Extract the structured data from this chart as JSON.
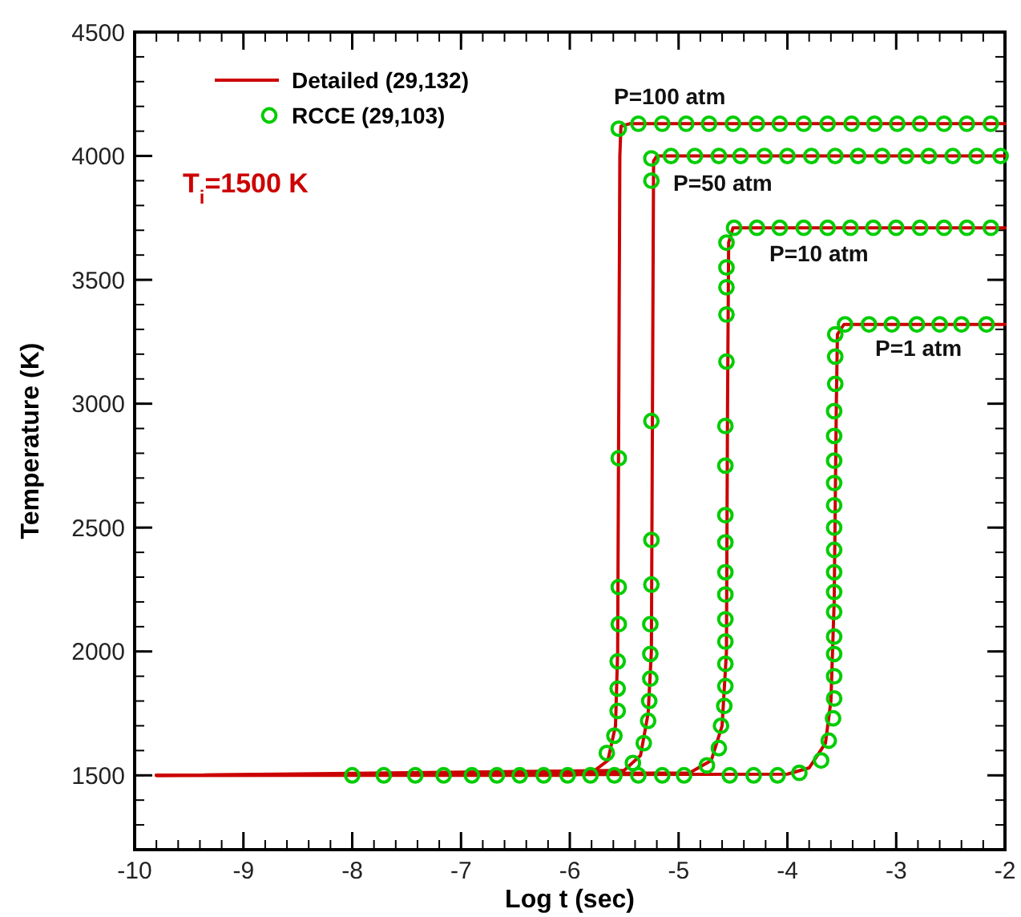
{
  "chart_data": {
    "type": "line",
    "xlabel": "Log t (sec)",
    "ylabel": "Temperature (K)",
    "xlim": [
      -10,
      -2
    ],
    "ylim": [
      1200,
      4500
    ],
    "xticks": [
      -10,
      -9,
      -8,
      -7,
      -6,
      -5,
      -4,
      -3,
      -2
    ],
    "yticks": [
      1500,
      2000,
      2500,
      3000,
      3500,
      4000,
      4500
    ],
    "grid": false,
    "legend": "top left",
    "annotations": [
      "P=100 atm",
      "P=50 atm",
      "P=10 atm",
      "P=1 atm",
      "T$_{i}$=1500 K"
    ],
    "series": [
      {
        "name": "Detailed (29,132)",
        "color": "#cc0000",
        "x": [
          -9.8,
          -6.0,
          -5.8,
          -5.65,
          -5.58,
          -5.56,
          -5.55,
          -5.54,
          -5.53,
          -5.45,
          -2
        ],
        "values": [
          1500,
          1500,
          1510,
          1560,
          1700,
          2000,
          3000,
          4000,
          4120,
          4130,
          4130
        ]
      },
      {
        "color": "#cc0000",
        "x": [
          -9.8,
          -5.5,
          -5.35,
          -5.28,
          -5.25,
          -5.24,
          -5.23,
          -5.2,
          -2
        ],
        "values": [
          1500,
          1520,
          1580,
          1750,
          2000,
          3000,
          3980,
          4000,
          4000
        ]
      },
      {
        "color": "#cc0000",
        "x": [
          -9.8,
          -4.9,
          -4.7,
          -4.6,
          -4.56,
          -4.55,
          -4.54,
          -4.5,
          -2
        ],
        "values": [
          1500,
          1510,
          1560,
          1700,
          2000,
          3000,
          3650,
          3710,
          3710
        ]
      },
      {
        "color": "#cc0000",
        "x": [
          -9.8,
          -4.0,
          -3.8,
          -3.65,
          -3.6,
          -3.57,
          -3.55,
          -3.54,
          -3.48,
          -2
        ],
        "values": [
          1500,
          1505,
          1530,
          1630,
          1800,
          2200,
          3000,
          3280,
          3320,
          3320
        ]
      },
      {
        "name": "RCCE (29,103)",
        "type": "scatter",
        "color": "#00cc00",
        "x": [
          -8,
          -7.71,
          -7.42,
          -7.16,
          -6.9,
          -6.67,
          -6.46,
          -6.24,
          -6.02,
          -5.81,
          -5.66,
          -5.59,
          -5.56,
          -5.56,
          -5.56,
          -5.55,
          -5.55,
          -5.55,
          -5.55,
          -5.37,
          -5.15,
          -4.93,
          -4.72,
          -4.5,
          -4.28,
          -4.07,
          -3.85,
          -3.63,
          -3.41,
          -3.2,
          -2.99,
          -2.78,
          -2.56,
          -2.35,
          -2.13
        ],
        "values": [
          1500,
          1500,
          1500,
          1500,
          1500,
          1500,
          1500,
          1500,
          1500,
          1500,
          1590,
          1660,
          1760,
          1850,
          1960,
          2110,
          2260,
          2780,
          4110,
          4130,
          4130,
          4130,
          4130,
          4130,
          4130,
          4130,
          4130,
          4130,
          4130,
          4130,
          4130,
          4130,
          4130,
          4130,
          4130
        ]
      },
      {
        "type": "scatter",
        "color": "#00cc00",
        "x": [
          -5.59,
          -5.42,
          -5.32,
          -5.28,
          -5.27,
          -5.26,
          -5.26,
          -5.26,
          -5.25,
          -5.25,
          -5.25,
          -5.25,
          -5.25,
          -5.07,
          -4.85,
          -4.63,
          -4.43,
          -4.21,
          -4.0,
          -3.78,
          -3.56,
          -3.35,
          -3.13,
          -2.91,
          -2.7,
          -2.48,
          -2.26,
          -2.04
        ],
        "values": [
          1500,
          1550,
          1630,
          1720,
          1800,
          1890,
          1990,
          2110,
          2270,
          2450,
          2930,
          3900,
          3990,
          4000,
          4000,
          4000,
          4000,
          4000,
          4000,
          4000,
          4000,
          4000,
          4000,
          4000,
          4000,
          4000,
          4000,
          4000
        ]
      },
      {
        "type": "scatter",
        "color": "#00cc00",
        "x": [
          -5.37,
          -5.15,
          -4.95,
          -4.74,
          -4.63,
          -4.61,
          -4.58,
          -4.57,
          -4.57,
          -4.57,
          -4.57,
          -4.57,
          -4.57,
          -4.57,
          -4.57,
          -4.57,
          -4.57,
          -4.56,
          -4.56,
          -4.56,
          -4.56,
          -4.56,
          -4.49,
          -4.28,
          -4.07,
          -3.85,
          -3.63,
          -3.42,
          -3.21,
          -3.0,
          -2.78,
          -2.56,
          -2.35,
          -2.13
        ],
        "values": [
          1500,
          1500,
          1500,
          1540,
          1610,
          1700,
          1780,
          1860,
          1950,
          2040,
          2130,
          2230,
          2320,
          2440,
          2550,
          2750,
          2910,
          3170,
          3360,
          3470,
          3550,
          3650,
          3710,
          3710,
          3710,
          3710,
          3710,
          3710,
          3710,
          3710,
          3710,
          3710,
          3710,
          3710
        ]
      },
      {
        "type": "scatter",
        "color": "#00cc00",
        "x": [
          -4.53,
          -4.31,
          -4.09,
          -3.89,
          -3.69,
          -3.62,
          -3.58,
          -3.57,
          -3.57,
          -3.57,
          -3.57,
          -3.57,
          -3.57,
          -3.57,
          -3.57,
          -3.57,
          -3.57,
          -3.57,
          -3.57,
          -3.57,
          -3.57,
          -3.56,
          -3.56,
          -3.56,
          -3.47,
          -3.25,
          -3.04,
          -2.81,
          -2.6,
          -2.4,
          -2.17
        ],
        "values": [
          1500,
          1500,
          1500,
          1510,
          1560,
          1640,
          1730,
          1810,
          1900,
          1990,
          2060,
          2160,
          2240,
          2320,
          2410,
          2500,
          2590,
          2680,
          2770,
          2870,
          2970,
          3080,
          3190,
          3280,
          3320,
          3320,
          3320,
          3320,
          3320,
          3320,
          3320
        ]
      }
    ]
  }
}
